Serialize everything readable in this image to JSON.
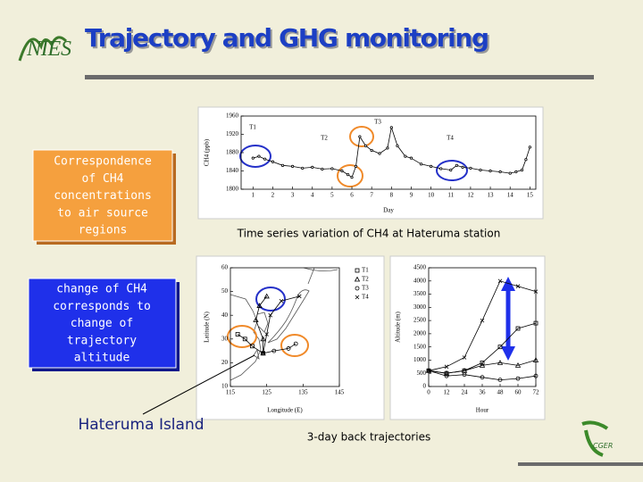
{
  "title": "Trajectory and GHG monitoring",
  "logo_text": "NIES",
  "corner_logo_text": "CGER",
  "boxes": [
    {
      "lines": [
        "Correspondence",
        "of CH4",
        "concentrations",
        "to air source",
        "regions"
      ]
    },
    {
      "lines": [
        "change of CH4",
        "corresponds to",
        "change of",
        "trajectory",
        "altitude"
      ]
    }
  ],
  "captions": [
    "Time series variation of CH4 at Hateruma station",
    "3-day back trajectories"
  ],
  "callout": "Hateruma Island",
  "chart_data": [
    {
      "type": "line",
      "ylabel": "CH4 (ppb)",
      "xlabel": "Day",
      "x": [
        1,
        1.3,
        1.6,
        2,
        2.5,
        3,
        3.5,
        4,
        4.5,
        5,
        5.5,
        5.8,
        6,
        6.2,
        6.4,
        6.7,
        7,
        7.4,
        7.8,
        8,
        8.3,
        8.7,
        9,
        9.5,
        10,
        10.5,
        11,
        11.3,
        11.6,
        12,
        12.5,
        13,
        13.5,
        14,
        14.3,
        14.6,
        14.8,
        15
      ],
      "values": [
        1868,
        1872,
        1866,
        1860,
        1852,
        1850,
        1846,
        1848,
        1844,
        1845,
        1840,
        1832,
        1826,
        1850,
        1915,
        1895,
        1885,
        1878,
        1890,
        1935,
        1895,
        1872,
        1868,
        1855,
        1850,
        1845,
        1842,
        1852,
        1848,
        1846,
        1842,
        1840,
        1838,
        1835,
        1838,
        1842,
        1865,
        1892
      ],
      "xlim": [
        0.4,
        15.3
      ],
      "xticks": [
        1,
        2,
        3,
        4,
        5,
        6,
        7,
        8,
        9,
        10,
        11,
        12,
        13,
        14,
        15
      ],
      "ylim": [
        1800,
        1960
      ],
      "yticks": [
        1800,
        1840,
        1880,
        1920,
        1960
      ],
      "annotations": [
        "T1",
        "T2",
        "T3",
        "T4"
      ]
    },
    {
      "type": "line",
      "ylabel": "Latitude (N)",
      "xlabel": "Longitude (E)",
      "xlim": [
        115,
        145
      ],
      "xticks": [
        115,
        125,
        135,
        145
      ],
      "ylim": [
        10,
        60
      ],
      "yticks": [
        10,
        20,
        30,
        40,
        50,
        60
      ],
      "legend": "upper right",
      "series": [
        {
          "name": "T1",
          "marker": "square",
          "x": [
            124,
            121,
            119,
            117
          ],
          "values": [
            24,
            27,
            30,
            32
          ]
        },
        {
          "name": "T2",
          "marker": "triangle",
          "x": [
            124,
            124,
            122,
            123,
            125
          ],
          "values": [
            24,
            30,
            38,
            44,
            48
          ]
        },
        {
          "name": "T3",
          "marker": "circle",
          "x": [
            124,
            127,
            131,
            133
          ],
          "values": [
            24,
            25,
            26,
            28
          ]
        },
        {
          "name": "T4",
          "marker": "cross",
          "x": [
            124,
            125,
            126,
            129,
            134
          ],
          "values": [
            24,
            32,
            40,
            46,
            48
          ]
        }
      ]
    },
    {
      "type": "line",
      "ylabel": "Altitude (m)",
      "xlabel": "Hour",
      "x": [
        0,
        12,
        24,
        36,
        48,
        60,
        72
      ],
      "xlim": [
        0,
        72
      ],
      "xticks": [
        0,
        12,
        24,
        36,
        48,
        60,
        72
      ],
      "ylim": [
        0,
        4500
      ],
      "yticks": [
        0,
        500,
        1000,
        1500,
        2000,
        2500,
        3000,
        3500,
        4000,
        4500
      ],
      "series": [
        {
          "marker": "circle",
          "values": [
            600,
            400,
            450,
            350,
            250,
            300,
            400
          ]
        },
        {
          "marker": "triangle",
          "values": [
            600,
            500,
            600,
            800,
            900,
            800,
            1000
          ]
        },
        {
          "marker": "square",
          "values": [
            600,
            500,
            600,
            900,
            1500,
            2200,
            2400
          ]
        },
        {
          "marker": "cross",
          "values": [
            600,
            750,
            1100,
            2500,
            4000,
            3800,
            3600
          ]
        }
      ]
    }
  ]
}
